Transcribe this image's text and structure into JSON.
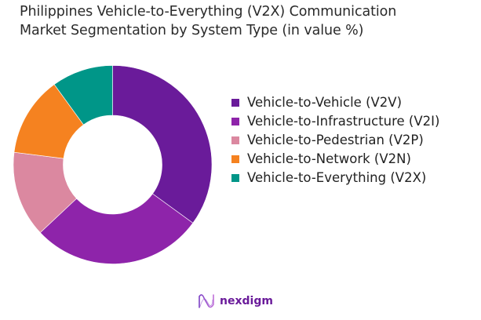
{
  "title": {
    "line1": "Philippines Vehicle-to-Everything (V2X) Communication",
    "line2": "Market Segmentation by System Type (in value %)"
  },
  "chart_data": {
    "type": "pie",
    "variant": "donut",
    "title": "Philippines Vehicle-to-Everything (V2X) Communication Market Segmentation by System Type (in value %)",
    "categories": [
      "Vehicle-to-Vehicle (V2V)",
      "Vehicle-to-Infrastructure (V2I)",
      "Vehicle-to-Pedestrian (V2P)",
      "Vehicle-to-Network (V2N)",
      "Vehicle-to-Everything (V2X)"
    ],
    "values": [
      35,
      28,
      14,
      13,
      10
    ],
    "colors": [
      "#6A1B9A",
      "#8E24AA",
      "#DB88A0",
      "#F58220",
      "#009688"
    ],
    "start_angle_deg": 0,
    "direction": "clockwise",
    "legend_position": "right",
    "data_labels": false
  },
  "legend": {
    "items": [
      {
        "label": "Vehicle-to-Vehicle (V2V)",
        "color": "#6A1B9A"
      },
      {
        "label": "Vehicle-to-Infrastructure (V2I)",
        "color": "#8E24AA"
      },
      {
        "label": "Vehicle-to-Pedestrian (V2P)",
        "color": "#DB88A0"
      },
      {
        "label": "Vehicle-to-Network (V2N)",
        "color": "#F58220"
      },
      {
        "label": "Vehicle-to-Everything (V2X)",
        "color": "#009688"
      }
    ]
  },
  "footer": {
    "logo_text": "nexdigm",
    "logo_icon": "nexdigm-wave-icon",
    "brand_color": "#6A1B9A"
  }
}
